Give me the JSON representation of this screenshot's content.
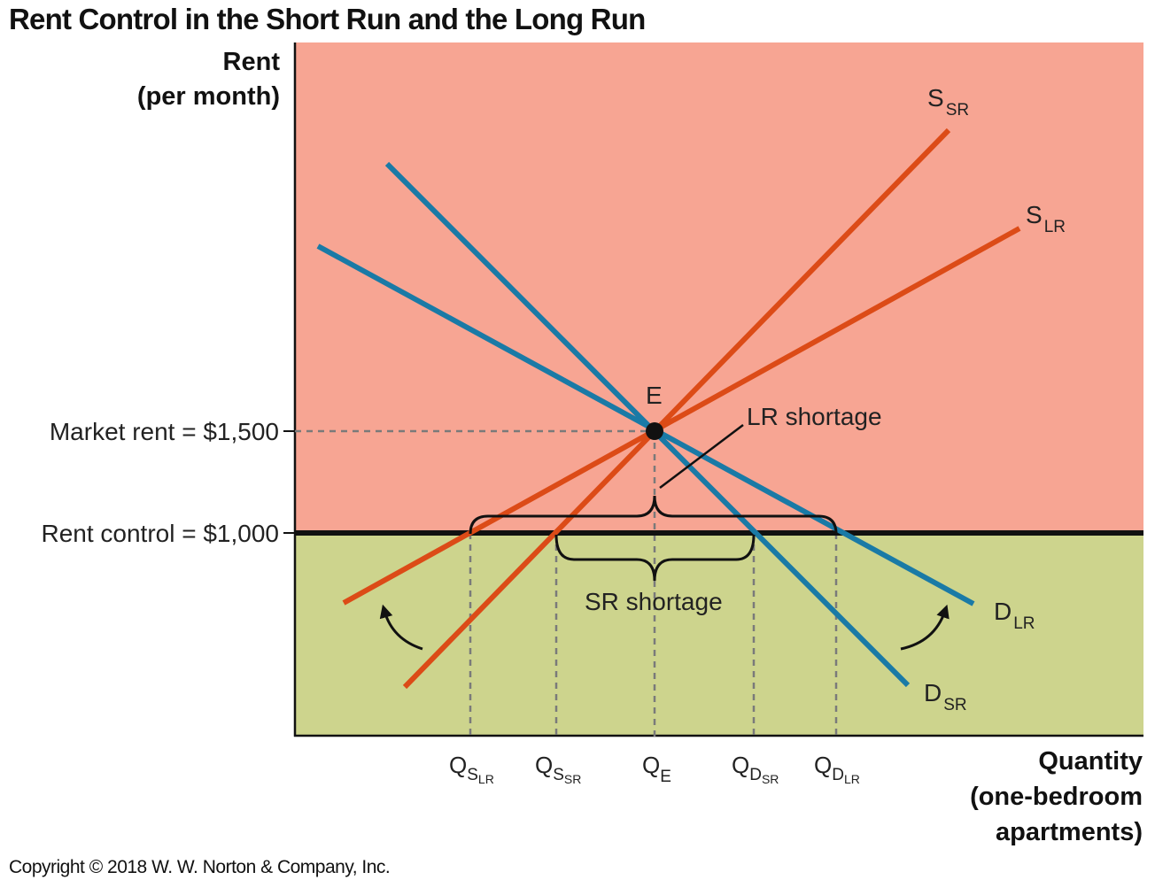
{
  "title": "Rent Control in the Short Run and the Long Run",
  "y_axis": {
    "line1": "Rent",
    "line2": "(per month)"
  },
  "x_axis": {
    "line1": "Quantity",
    "line2": "(one-bedroom",
    "line3": "apartments)"
  },
  "price_labels": {
    "market": "Market rent = $1,500",
    "control": "Rent control = $1,000"
  },
  "curves": {
    "s_sr": {
      "main": "S",
      "sub": "SR"
    },
    "s_lr": {
      "main": "S",
      "sub": "LR"
    },
    "d_sr": {
      "main": "D",
      "sub": "SR"
    },
    "d_lr": {
      "main": "D",
      "sub": "LR"
    }
  },
  "point_e": "E",
  "lr_shortage": "LR shortage",
  "sr_shortage": "SR shortage",
  "qty_labels": {
    "q_s_lr": {
      "main": "Q",
      "sub": "S",
      "subsub": "LR"
    },
    "q_s_sr": {
      "main": "Q",
      "sub": "S",
      "subsub": "SR"
    },
    "q_e": {
      "main": "Q",
      "sub": "E"
    },
    "q_d_sr": {
      "main": "Q",
      "sub": "D",
      "subsub": "SR"
    },
    "q_d_lr": {
      "main": "Q",
      "sub": "D",
      "subsub": "LR"
    }
  },
  "copyright": "Copyright © 2018 W. W. Norton & Company, Inc.",
  "colors": {
    "upper_region": "#f7a593",
    "lower_region": "#cdd48d",
    "supply": "#dc4b17",
    "demand": "#1a7aa6",
    "rent_control_line": "#111111",
    "guides": "#7a7a7a"
  }
}
